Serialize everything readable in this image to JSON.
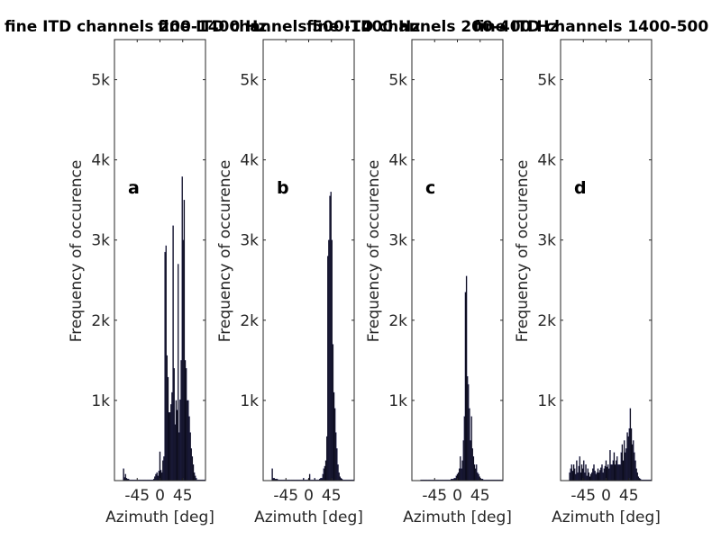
{
  "chart_data": [
    {
      "type": "bar",
      "panel_label": "a",
      "title": "fine ITD channels 200-1400 Hz",
      "xlabel": "Azimuth [deg]",
      "ylabel": "Frequency of occurence",
      "xlim": [
        -90,
        90
      ],
      "ylim": [
        0,
        5500
      ],
      "xticks": [
        -45,
        0,
        45
      ],
      "xtick_labels": [
        "-45",
        "0",
        "45"
      ],
      "yticks": [
        1000,
        2000,
        3000,
        4000,
        5000
      ],
      "ytick_labels": [
        "1k",
        "2k",
        "3k",
        "4k",
        "5k"
      ],
      "grid": false,
      "bar_width": 2,
      "x": [
        -72,
        -70,
        -68,
        -66,
        -64,
        -62,
        -60,
        -58,
        -56,
        -54,
        -52,
        -50,
        -48,
        -46,
        -44,
        -42,
        -40,
        -38,
        -36,
        -34,
        -32,
        -30,
        -28,
        -26,
        -24,
        -22,
        -20,
        -18,
        -16,
        -14,
        -12,
        -10,
        -8,
        -6,
        -4,
        -2,
        0,
        2,
        4,
        6,
        8,
        10,
        12,
        14,
        16,
        18,
        20,
        22,
        24,
        26,
        28,
        30,
        32,
        34,
        36,
        38,
        40,
        42,
        44,
        46,
        48,
        50,
        52,
        54,
        56,
        58,
        60,
        62,
        64,
        66,
        68,
        70,
        72,
        74,
        76,
        78,
        80,
        82,
        84,
        86,
        88
      ],
      "values": [
        150,
        40,
        80,
        30,
        20,
        20,
        10,
        10,
        10,
        10,
        10,
        10,
        10,
        10,
        10,
        10,
        10,
        10,
        10,
        10,
        10,
        10,
        10,
        10,
        10,
        10,
        10,
        10,
        10,
        10,
        20,
        50,
        80,
        100,
        60,
        120,
        360,
        130,
        100,
        250,
        300,
        2850,
        2930,
        1560,
        1290,
        850,
        850,
        950,
        1100,
        3180,
        1400,
        700,
        1000,
        880,
        2700,
        600,
        1010,
        1500,
        3790,
        3000,
        3500,
        1500,
        1400,
        1000,
        1000,
        800,
        600,
        400,
        300,
        200,
        100,
        60,
        30,
        10,
        10,
        10,
        10,
        10,
        10,
        10,
        10
      ]
    },
    {
      "type": "bar",
      "panel_label": "b",
      "title": "fine ITD channels 500-1400 Hz",
      "xlabel": "Azimuth [deg]",
      "ylabel": "Frequency of occurence",
      "xlim": [
        -90,
        90
      ],
      "ylim": [
        0,
        5500
      ],
      "xticks": [
        -45,
        0,
        45
      ],
      "xtick_labels": [
        "-45",
        "0",
        "45"
      ],
      "yticks": [
        1000,
        2000,
        3000,
        4000,
        5000
      ],
      "ytick_labels": [
        "1k",
        "2k",
        "3k",
        "4k",
        "5k"
      ],
      "grid": false,
      "bar_width": 2,
      "x": [
        -72,
        -70,
        -68,
        -66,
        -64,
        -62,
        -60,
        -58,
        -56,
        -54,
        -52,
        -50,
        -48,
        -46,
        -44,
        -42,
        -40,
        -38,
        -36,
        -34,
        -32,
        -30,
        -28,
        -26,
        -24,
        -22,
        -20,
        -18,
        -16,
        -14,
        -12,
        -10,
        -8,
        -6,
        -4,
        -2,
        0,
        2,
        4,
        6,
        8,
        10,
        12,
        14,
        16,
        18,
        20,
        22,
        24,
        26,
        28,
        30,
        32,
        34,
        36,
        38,
        40,
        42,
        44,
        46,
        48,
        50,
        52,
        54,
        56,
        58,
        60,
        62,
        64,
        66,
        68,
        70,
        72,
        74,
        76,
        78,
        80,
        82,
        84,
        86,
        88
      ],
      "values": [
        150,
        30,
        30,
        20,
        20,
        20,
        10,
        10,
        10,
        10,
        10,
        10,
        10,
        10,
        10,
        10,
        10,
        10,
        10,
        10,
        10,
        10,
        10,
        10,
        10,
        10,
        10,
        10,
        10,
        10,
        10,
        30,
        10,
        10,
        10,
        10,
        20,
        80,
        10,
        10,
        10,
        10,
        30,
        10,
        10,
        10,
        10,
        20,
        30,
        30,
        80,
        150,
        180,
        250,
        550,
        2800,
        3000,
        3550,
        3600,
        3000,
        1700,
        1100,
        900,
        600,
        400,
        200,
        100,
        50,
        30,
        20,
        10,
        10,
        10,
        10,
        10,
        10,
        10,
        10,
        10,
        10,
        10
      ]
    },
    {
      "type": "bar",
      "panel_label": "c",
      "title": "fine ITD channels 200-400 Hz",
      "xlabel": "Azimuth [deg]",
      "ylabel": "Frequency of occurence",
      "xlim": [
        -90,
        90
      ],
      "ylim": [
        0,
        5500
      ],
      "xticks": [
        -45,
        0,
        45
      ],
      "xtick_labels": [
        "-45",
        "0",
        "45"
      ],
      "yticks": [
        1000,
        2000,
        3000,
        4000,
        5000
      ],
      "ytick_labels": [
        "1k",
        "2k",
        "3k",
        "4k",
        "5k"
      ],
      "grid": false,
      "bar_width": 2,
      "x": [
        -72,
        -70,
        -68,
        -66,
        -64,
        -62,
        -60,
        -58,
        -56,
        -54,
        -52,
        -50,
        -48,
        -46,
        -44,
        -42,
        -40,
        -38,
        -36,
        -34,
        -32,
        -30,
        -28,
        -26,
        -24,
        -22,
        -20,
        -18,
        -16,
        -14,
        -12,
        -10,
        -8,
        -6,
        -4,
        -2,
        0,
        2,
        4,
        6,
        8,
        10,
        12,
        14,
        16,
        18,
        20,
        22,
        24,
        26,
        28,
        30,
        32,
        34,
        36,
        38,
        40,
        42,
        44,
        46,
        48,
        50,
        52,
        54,
        56,
        58,
        60,
        62,
        64,
        66,
        68,
        70,
        72,
        74,
        76,
        78,
        80,
        82,
        84,
        86,
        88
      ],
      "values": [
        10,
        10,
        10,
        10,
        10,
        10,
        10,
        10,
        10,
        10,
        10,
        10,
        10,
        10,
        10,
        10,
        10,
        10,
        10,
        10,
        10,
        10,
        10,
        10,
        10,
        10,
        10,
        10,
        10,
        10,
        20,
        20,
        20,
        30,
        30,
        60,
        80,
        100,
        150,
        300,
        150,
        250,
        500,
        800,
        2350,
        2550,
        1300,
        1200,
        900,
        500,
        800,
        400,
        300,
        200,
        150,
        200,
        100,
        80,
        50,
        30,
        20,
        20,
        10,
        10,
        10,
        10,
        10,
        10,
        10,
        10,
        10,
        10,
        10,
        10,
        10,
        10,
        10,
        10,
        10,
        10,
        10
      ]
    },
    {
      "type": "bar",
      "panel_label": "d",
      "title": "fine ITD channels 1400-500",
      "xlabel": "Azimuth [deg]",
      "ylabel": "Frequency of occurence",
      "xlim": [
        -90,
        90
      ],
      "ylim": [
        0,
        5500
      ],
      "xticks": [
        -45,
        0,
        45
      ],
      "xtick_labels": [
        "-45",
        "0",
        "45"
      ],
      "yticks": [
        1000,
        2000,
        3000,
        4000,
        5000
      ],
      "ytick_labels": [
        "1k",
        "2k",
        "3k",
        "4k",
        "5k"
      ],
      "grid": false,
      "bar_width": 2,
      "x": [
        -72,
        -70,
        -68,
        -66,
        -64,
        -62,
        -60,
        -58,
        -56,
        -54,
        -52,
        -50,
        -48,
        -46,
        -44,
        -42,
        -40,
        -38,
        -36,
        -34,
        -32,
        -30,
        -28,
        -26,
        -24,
        -22,
        -20,
        -18,
        -16,
        -14,
        -12,
        -10,
        -8,
        -6,
        -4,
        -2,
        0,
        2,
        4,
        6,
        8,
        10,
        12,
        14,
        16,
        18,
        20,
        22,
        24,
        26,
        28,
        30,
        32,
        34,
        36,
        38,
        40,
        42,
        44,
        46,
        48,
        50,
        52,
        54,
        56,
        58,
        60,
        62,
        64,
        66,
        68,
        70,
        72,
        74,
        76,
        78,
        80,
        82,
        84,
        86,
        88
      ],
      "values": [
        100,
        150,
        200,
        120,
        200,
        150,
        80,
        250,
        100,
        180,
        300,
        100,
        200,
        150,
        250,
        100,
        200,
        60,
        150,
        100,
        50,
        80,
        100,
        150,
        200,
        120,
        80,
        100,
        150,
        100,
        130,
        160,
        200,
        100,
        150,
        180,
        250,
        170,
        200,
        150,
        380,
        200,
        200,
        250,
        350,
        200,
        250,
        300,
        200,
        200,
        200,
        350,
        450,
        250,
        500,
        350,
        400,
        600,
        550,
        650,
        900,
        650,
        450,
        500,
        350,
        250,
        150,
        100,
        50,
        30,
        20,
        10,
        10,
        10,
        10,
        10,
        10,
        10,
        10,
        10,
        10
      ]
    }
  ]
}
